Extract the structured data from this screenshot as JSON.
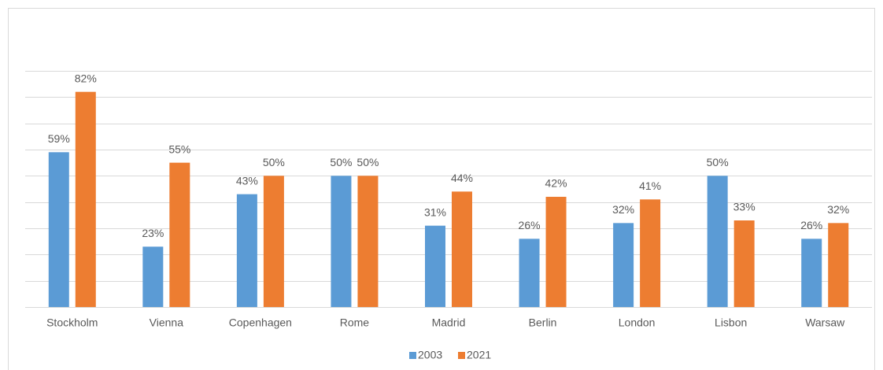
{
  "chart_data": {
    "type": "bar",
    "categories": [
      "Stockholm",
      "Vienna",
      "Copenhagen",
      "Rome",
      "Madrid",
      "Berlin",
      "London",
      "Lisbon",
      "Warsaw"
    ],
    "series": [
      {
        "name": "2003",
        "color": "#5b9bd5",
        "values": [
          59,
          23,
          43,
          50,
          31,
          26,
          32,
          50,
          26
        ],
        "value_labels": [
          "59%",
          "23%",
          "43%",
          "50%",
          "31%",
          "26%",
          "32%",
          "50%",
          "26%"
        ]
      },
      {
        "name": "2021",
        "color": "#ed7d31",
        "values": [
          82,
          55,
          50,
          50,
          44,
          42,
          41,
          33,
          32
        ],
        "value_labels": [
          "82%",
          "55%",
          "50%",
          "50%",
          "44%",
          "42%",
          "41%",
          "33%",
          "32%"
        ]
      }
    ],
    "ylim": [
      0,
      90
    ],
    "yticks": [
      0,
      10,
      20,
      30,
      40,
      50,
      60,
      70,
      80,
      90
    ],
    "grid": true,
    "legend": "bottom"
  }
}
